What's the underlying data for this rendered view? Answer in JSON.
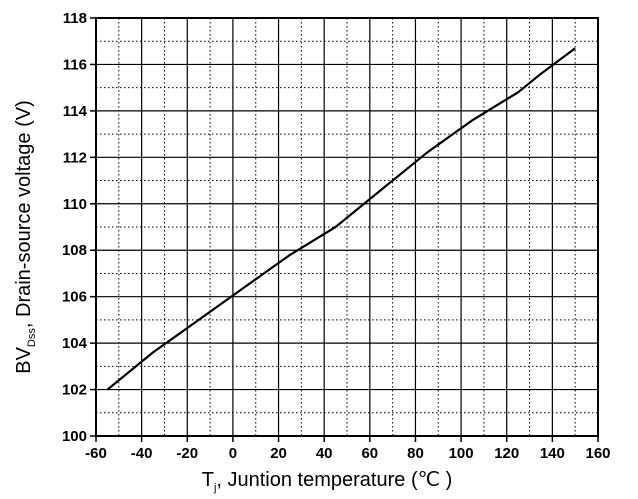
{
  "chart_data": {
    "type": "line",
    "title": "",
    "xlabel": {
      "main": "T",
      "sub": "j",
      "rest": ", Juntion temperature (℃ )"
    },
    "ylabel": {
      "main": "BV",
      "sub": "Dss",
      "rest": ", Drain-source voltage (V)"
    },
    "xlim": [
      -60,
      160
    ],
    "ylim": [
      100,
      118
    ],
    "xticks": [
      -60,
      -40,
      -20,
      0,
      20,
      40,
      60,
      80,
      100,
      120,
      140,
      160
    ],
    "yticks": [
      100,
      102,
      104,
      106,
      108,
      110,
      112,
      114,
      116,
      118
    ],
    "x_minor_step": 10,
    "y_minor_step": 1,
    "grid": true,
    "legend": "none",
    "series": [
      {
        "color": "#000000",
        "x": [
          -55,
          -45,
          -35,
          -25,
          -15,
          -5,
          5,
          15,
          25,
          35,
          45,
          55,
          65,
          75,
          85,
          95,
          105,
          115,
          125,
          135,
          150
        ],
        "y": [
          102.0,
          102.8,
          103.6,
          104.3,
          105.0,
          105.7,
          106.4,
          107.1,
          107.8,
          108.4,
          109.0,
          109.8,
          110.6,
          111.4,
          112.2,
          112.9,
          113.6,
          114.2,
          114.8,
          115.6,
          116.7
        ]
      }
    ]
  }
}
